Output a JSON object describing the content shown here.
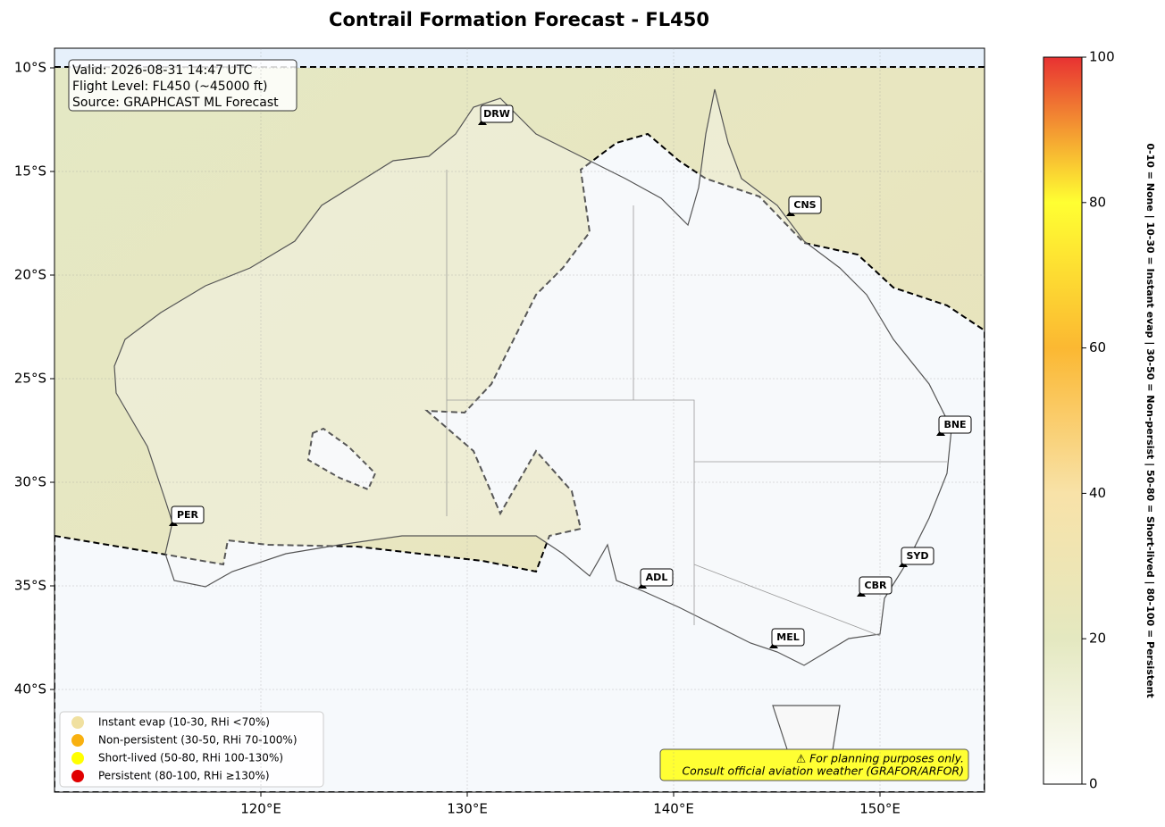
{
  "title": "Contrail Formation Forecast - FL450",
  "info": [
    "Valid: 2026-08-31 14:47 UTC",
    "Flight Level: FL450 (~45000 ft)",
    "Source: GRAPHCAST ML Forecast"
  ],
  "lat_ticks": [
    "10°S",
    "15°S",
    "20°S",
    "25°S",
    "30°S",
    "35°S",
    "40°S"
  ],
  "lon_ticks": [
    "120°E",
    "130°E",
    "140°E",
    "150°E"
  ],
  "airports": [
    "DRW",
    "CNS",
    "BNE",
    "PER",
    "ADL",
    "SYD",
    "CBR",
    "MEL"
  ],
  "legend": [
    {
      "label": "Instant evap (10-30, RHi <70%)",
      "color": "#f0e0a0"
    },
    {
      "label": "Non-persistent (30-50, RHi 70-100%)",
      "color": "#f8b010"
    },
    {
      "label": "Short-lived (50-80, RHi 100-130%)",
      "color": "#ffff00"
    },
    {
      "label": "Persistent (80-100, RHi ≥130%)",
      "color": "#e00000"
    }
  ],
  "disclaimer": [
    "⚠ For planning purposes only.",
    "Consult official aviation weather (GRAFOR/ARFOR)"
  ],
  "colorbar": {
    "range": [
      0,
      100
    ],
    "ticks": [
      0,
      20,
      40,
      60,
      80,
      100
    ],
    "side_label": "0-10 = None  |  10-30 = Instant evap  |  30-50 = Non-persist  |  50-80 = Short-lived  |  80-100 = Persistent"
  }
}
